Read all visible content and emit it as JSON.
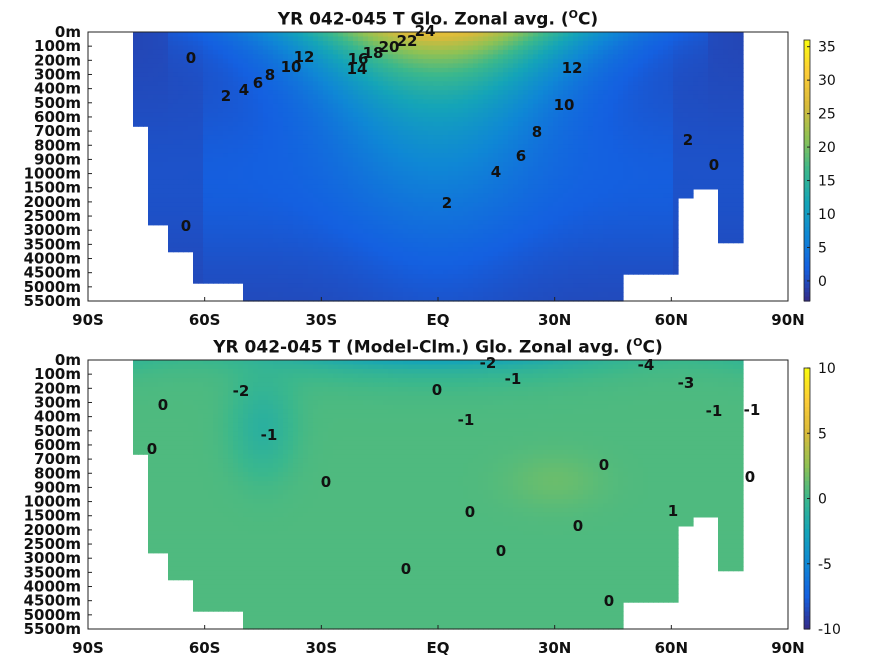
{
  "chart_data": [
    {
      "type": "heatmap",
      "title_prefix": "YR 042-045 T Glo. Zonal avg. (",
      "title_sup": "O",
      "title_suffix": "C)",
      "x_tick_labels": [
        "90S",
        "60S",
        "30S",
        "EQ",
        "30N",
        "60N",
        "90N"
      ],
      "x_tick_values": [
        -90,
        -60,
        -30,
        0,
        30,
        60,
        90
      ],
      "y_tick_labels": [
        "0m",
        "100m",
        "200m",
        "300m",
        "400m",
        "500m",
        "600m",
        "700m",
        "800m",
        "900m",
        "1000m",
        "1500m",
        "2000m",
        "2500m",
        "3000m",
        "3500m",
        "4000m",
        "4500m",
        "5000m",
        "5500m"
      ],
      "colorbar": {
        "ticks": [
          0,
          5,
          10,
          15,
          20,
          25,
          30,
          35
        ],
        "range": [
          -3,
          36
        ],
        "colormap": "parula"
      },
      "contour_labels": [
        "24",
        "22",
        "20",
        "18",
        "16",
        "14",
        "12",
        "12",
        "10",
        "10",
        "8",
        "8",
        "6",
        "6",
        "4",
        "4",
        "2",
        "2",
        "2",
        "0",
        "0",
        "0"
      ],
      "values_note_free": true
    },
    {
      "type": "heatmap",
      "title_prefix": "YR 042-045 T (Model-Clm.) Glo. Zonal avg. (",
      "title_sup": "O",
      "title_suffix": "C)",
      "x_tick_labels": [
        "90S",
        "60S",
        "30S",
        "EQ",
        "30N",
        "60N",
        "90N"
      ],
      "x_tick_values": [
        -90,
        -60,
        -30,
        0,
        30,
        60,
        90
      ],
      "y_tick_labels": [
        "0m",
        "100m",
        "200m",
        "300m",
        "400m",
        "500m",
        "600m",
        "700m",
        "800m",
        "900m",
        "1000m",
        "1500m",
        "2000m",
        "2500m",
        "3000m",
        "3500m",
        "4000m",
        "4500m",
        "5000m",
        "5500m"
      ],
      "colorbar": {
        "ticks": [
          -10,
          -5,
          0,
          5,
          10
        ],
        "range": [
          -10,
          10
        ],
        "colormap": "parula"
      },
      "contour_labels": [
        "-4",
        "-3",
        "-2",
        "-2",
        "-1",
        "-1",
        "-1",
        "-1",
        "-1",
        "0",
        "0",
        "0",
        "0",
        "0",
        "0",
        "0",
        "0",
        "0",
        "0",
        "0",
        "1"
      ]
    }
  ]
}
